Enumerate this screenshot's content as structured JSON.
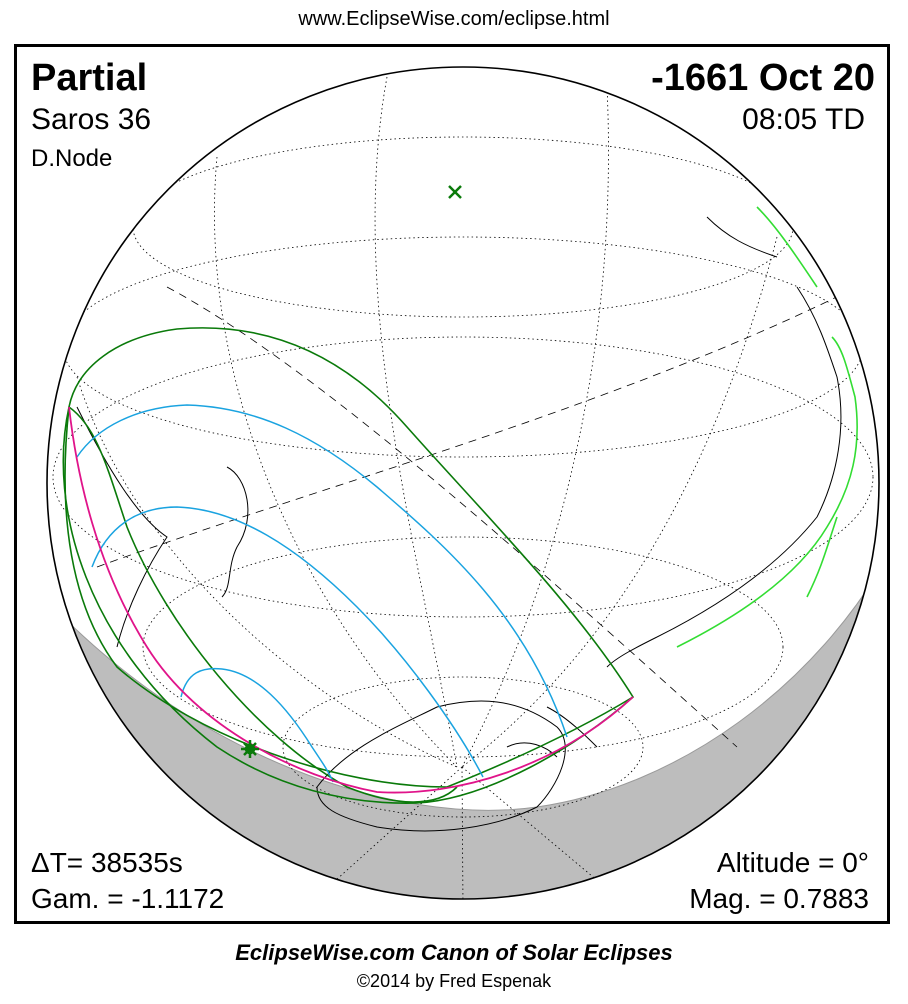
{
  "header": {
    "url": "www.EclipseWise.com/eclipse.html"
  },
  "eclipse": {
    "type": "Partial",
    "date": "-1661 Oct 20",
    "saros": "Saros  36",
    "time": "08:05 TD",
    "node": "D.Node",
    "delta_t": "ΔT=  38535s",
    "gamma": "Gam. = -1.1172",
    "altitude": "Altitude =  0°",
    "magnitude": "Mag. = 0.7883"
  },
  "footer": {
    "canon": "EclipseWise.com Canon of Solar Eclipses",
    "copyright": "©2014 by Fred Espenak"
  },
  "colors": {
    "limit_curves": "#0a7a0a",
    "magnitude_curves": "#1aa3e0",
    "max_eclipse_curve": "#e0148a",
    "night_shade": "#bdbdbd",
    "coastlines": "#000000",
    "highlighted_coast": "#33dd33"
  },
  "markers": {
    "subsolar": "x-mark",
    "greatest_eclipse": "asterisk-mark"
  }
}
